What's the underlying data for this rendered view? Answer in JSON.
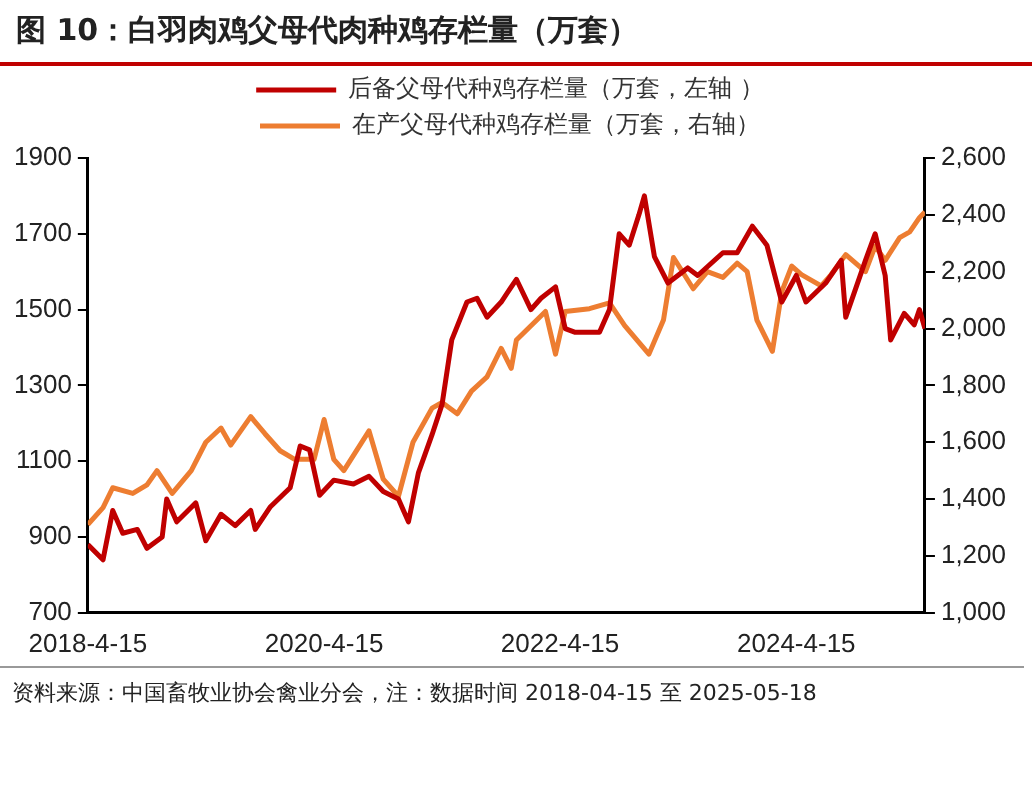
{
  "chart_data": {
    "type": "line",
    "title": "图 10：白羽肉鸡父母代肉种鸡存栏量（万套）",
    "legend": "top",
    "xlim": [
      "2018-04-15",
      "2025-05-18"
    ],
    "xticks": [
      {
        "value": "2018-04-15",
        "label": "2018-4-15"
      },
      {
        "value": "2020-04-15",
        "label": "2020-4-15"
      },
      {
        "value": "2022-04-15",
        "label": "2022-4-15"
      },
      {
        "value": "2024-04-15",
        "label": "2024-4-15"
      }
    ],
    "ylim": [
      700,
      1900
    ],
    "yticks": [
      700,
      900,
      1100,
      1300,
      1500,
      1700,
      1900
    ],
    "y2lim": [
      1000,
      2600
    ],
    "y2ticks": [
      {
        "value": 1000,
        "label": "1,000"
      },
      {
        "value": 1200,
        "label": "1,200"
      },
      {
        "value": 1400,
        "label": "1,400"
      },
      {
        "value": 1600,
        "label": "1,600"
      },
      {
        "value": 1800,
        "label": "1,800"
      },
      {
        "value": 2000,
        "label": "2,000"
      },
      {
        "value": 2200,
        "label": "2,200"
      },
      {
        "value": 2400,
        "label": "2,400"
      },
      {
        "value": 2600,
        "label": "2,600"
      }
    ],
    "series": [
      {
        "name": "后备父母代种鸡存栏量（万套，左轴 ）",
        "color": "#c00000",
        "x": [
          "2018-04-15",
          "2018-06-01",
          "2018-07-01",
          "2018-08-01",
          "2018-09-15",
          "2018-10-15",
          "2018-12-01",
          "2018-12-15",
          "2019-01-15",
          "2019-03-15",
          "2019-04-15",
          "2019-06-01",
          "2019-07-15",
          "2019-09-01",
          "2019-09-15",
          "2019-11-01",
          "2020-01-01",
          "2020-02-01",
          "2020-03-01",
          "2020-04-01",
          "2020-05-15",
          "2020-07-15",
          "2020-09-01",
          "2020-10-15",
          "2020-12-01",
          "2021-01-01",
          "2021-02-01",
          "2021-03-15",
          "2021-04-15",
          "2021-05-15",
          "2021-07-01",
          "2021-08-01",
          "2021-09-01",
          "2021-10-15",
          "2021-12-01",
          "2022-01-15",
          "2022-02-15",
          "2022-04-01",
          "2022-05-01",
          "2022-06-01",
          "2022-08-15",
          "2022-09-15",
          "2022-10-15",
          "2022-11-15",
          "2022-12-15",
          "2023-01-01",
          "2023-02-01",
          "2023-03-15",
          "2023-05-15",
          "2023-06-15",
          "2023-09-01",
          "2023-10-15",
          "2023-12-01",
          "2024-01-15",
          "2024-03-01",
          "2024-04-15",
          "2024-05-15",
          "2024-07-15",
          "2024-09-01",
          "2024-09-15",
          "2024-11-15",
          "2024-12-15",
          "2025-01-15",
          "2025-02-01",
          "2025-03-15",
          "2025-04-15",
          "2025-05-01",
          "2025-05-18"
        ],
        "values": [
          880,
          840,
          970,
          910,
          920,
          870,
          900,
          1000,
          940,
          990,
          890,
          960,
          930,
          970,
          920,
          980,
          1030,
          1140,
          1130,
          1010,
          1050,
          1040,
          1060,
          1020,
          1000,
          940,
          1070,
          1170,
          1250,
          1420,
          1520,
          1530,
          1480,
          1520,
          1580,
          1500,
          1530,
          1560,
          1450,
          1440,
          1440,
          1500,
          1700,
          1670,
          1750,
          1800,
          1640,
          1570,
          1610,
          1590,
          1650,
          1650,
          1720,
          1670,
          1520,
          1590,
          1520,
          1570,
          1630,
          1480,
          1630,
          1700,
          1590,
          1420,
          1490,
          1460,
          1500,
          1450
        ]
      },
      {
        "name": "在产父母代种鸡存栏量（万套，右轴）",
        "color": "#ed7d31",
        "axis": "y2",
        "x": [
          "2018-04-15",
          "2018-06-01",
          "2018-07-01",
          "2018-09-01",
          "2018-10-15",
          "2018-11-15",
          "2019-01-01",
          "2019-03-01",
          "2019-04-15",
          "2019-06-01",
          "2019-07-01",
          "2019-09-01",
          "2019-10-15",
          "2019-12-01",
          "2020-01-15",
          "2020-03-15",
          "2020-04-15",
          "2020-05-15",
          "2020-06-15",
          "2020-09-01",
          "2020-10-15",
          "2020-12-01",
          "2021-01-15",
          "2021-03-15",
          "2021-04-15",
          "2021-06-01",
          "2021-07-15",
          "2021-09-01",
          "2021-10-15",
          "2021-11-15",
          "2021-12-01",
          "2022-01-15",
          "2022-03-01",
          "2022-04-01",
          "2022-05-01",
          "2022-07-15",
          "2022-09-15",
          "2022-11-01",
          "2023-01-15",
          "2023-03-01",
          "2023-04-01",
          "2023-06-01",
          "2023-07-15",
          "2023-09-01",
          "2023-10-15",
          "2023-11-15",
          "2023-12-15",
          "2024-02-01",
          "2024-03-01",
          "2024-04-01",
          "2024-05-01",
          "2024-07-01",
          "2024-08-01",
          "2024-09-15",
          "2024-11-15",
          "2024-12-15",
          "2025-01-15",
          "2025-03-01",
          "2025-04-01",
          "2025-05-01",
          "2025-05-18"
        ],
        "values": [
          1310,
          1370,
          1440,
          1420,
          1450,
          1500,
          1420,
          1500,
          1600,
          1650,
          1590,
          1690,
          1630,
          1570,
          1540,
          1540,
          1680,
          1540,
          1500,
          1640,
          1470,
          1410,
          1600,
          1720,
          1740,
          1700,
          1780,
          1830,
          1930,
          1860,
          1960,
          2010,
          2060,
          1910,
          2060,
          2070,
          2090,
          2010,
          1910,
          2030,
          2250,
          2140,
          2200,
          2180,
          2230,
          2200,
          2030,
          1920,
          2130,
          2220,
          2190,
          2150,
          2190,
          2260,
          2200,
          2290,
          2240,
          2320,
          2340,
          2390,
          2410
        ]
      }
    ],
    "annotations": [
      "资料来源：中国畜牧业协会禽业分会，注：数据时间 2018-04-15 至 2025-05-18"
    ]
  }
}
